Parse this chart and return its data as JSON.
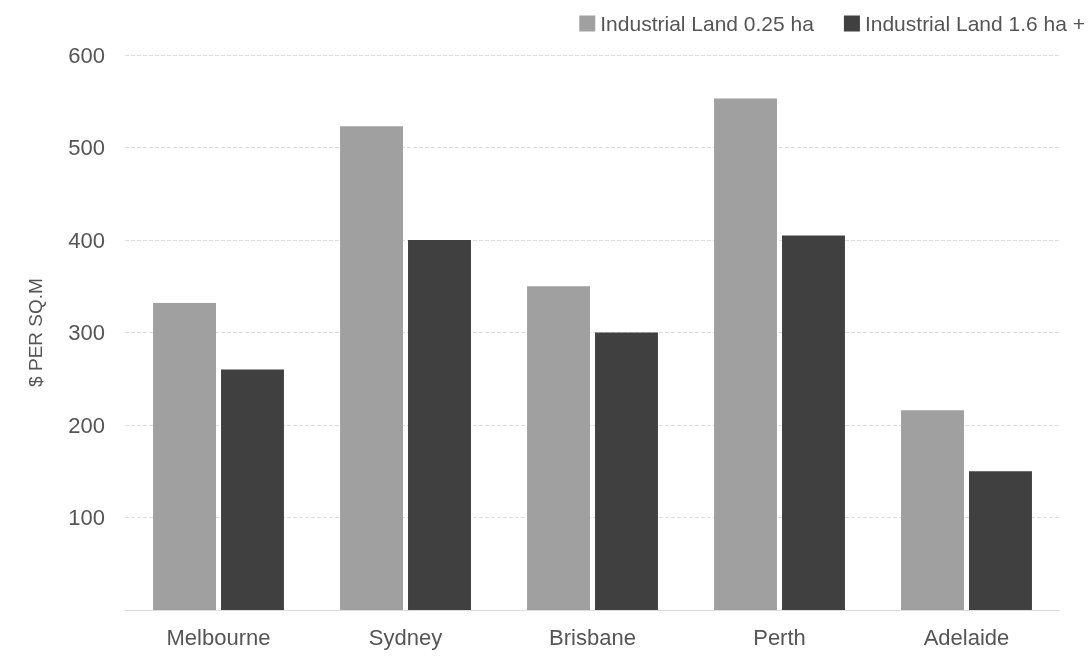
{
  "chart_data": {
    "type": "bar",
    "ylabel": "$ PER SQ.M",
    "categories": [
      "Melbourne",
      "Sydney",
      "Brisbane",
      "Perth",
      "Adelaide"
    ],
    "series": [
      {
        "name": "Industrial Land 0.25 ha",
        "color": "#a0a0a0",
        "values": [
          332,
          523,
          350,
          553,
          216
        ]
      },
      {
        "name": "Industrial Land 1.6 ha +",
        "color": "#404040",
        "values": [
          260,
          400,
          300,
          405,
          150
        ]
      }
    ],
    "ylim": [
      0,
      600
    ],
    "yticks": [
      {
        "value": 0,
        "label": null
      },
      100,
      200,
      300,
      400,
      500,
      600
    ],
    "grid": "y",
    "legend": "top right"
  }
}
